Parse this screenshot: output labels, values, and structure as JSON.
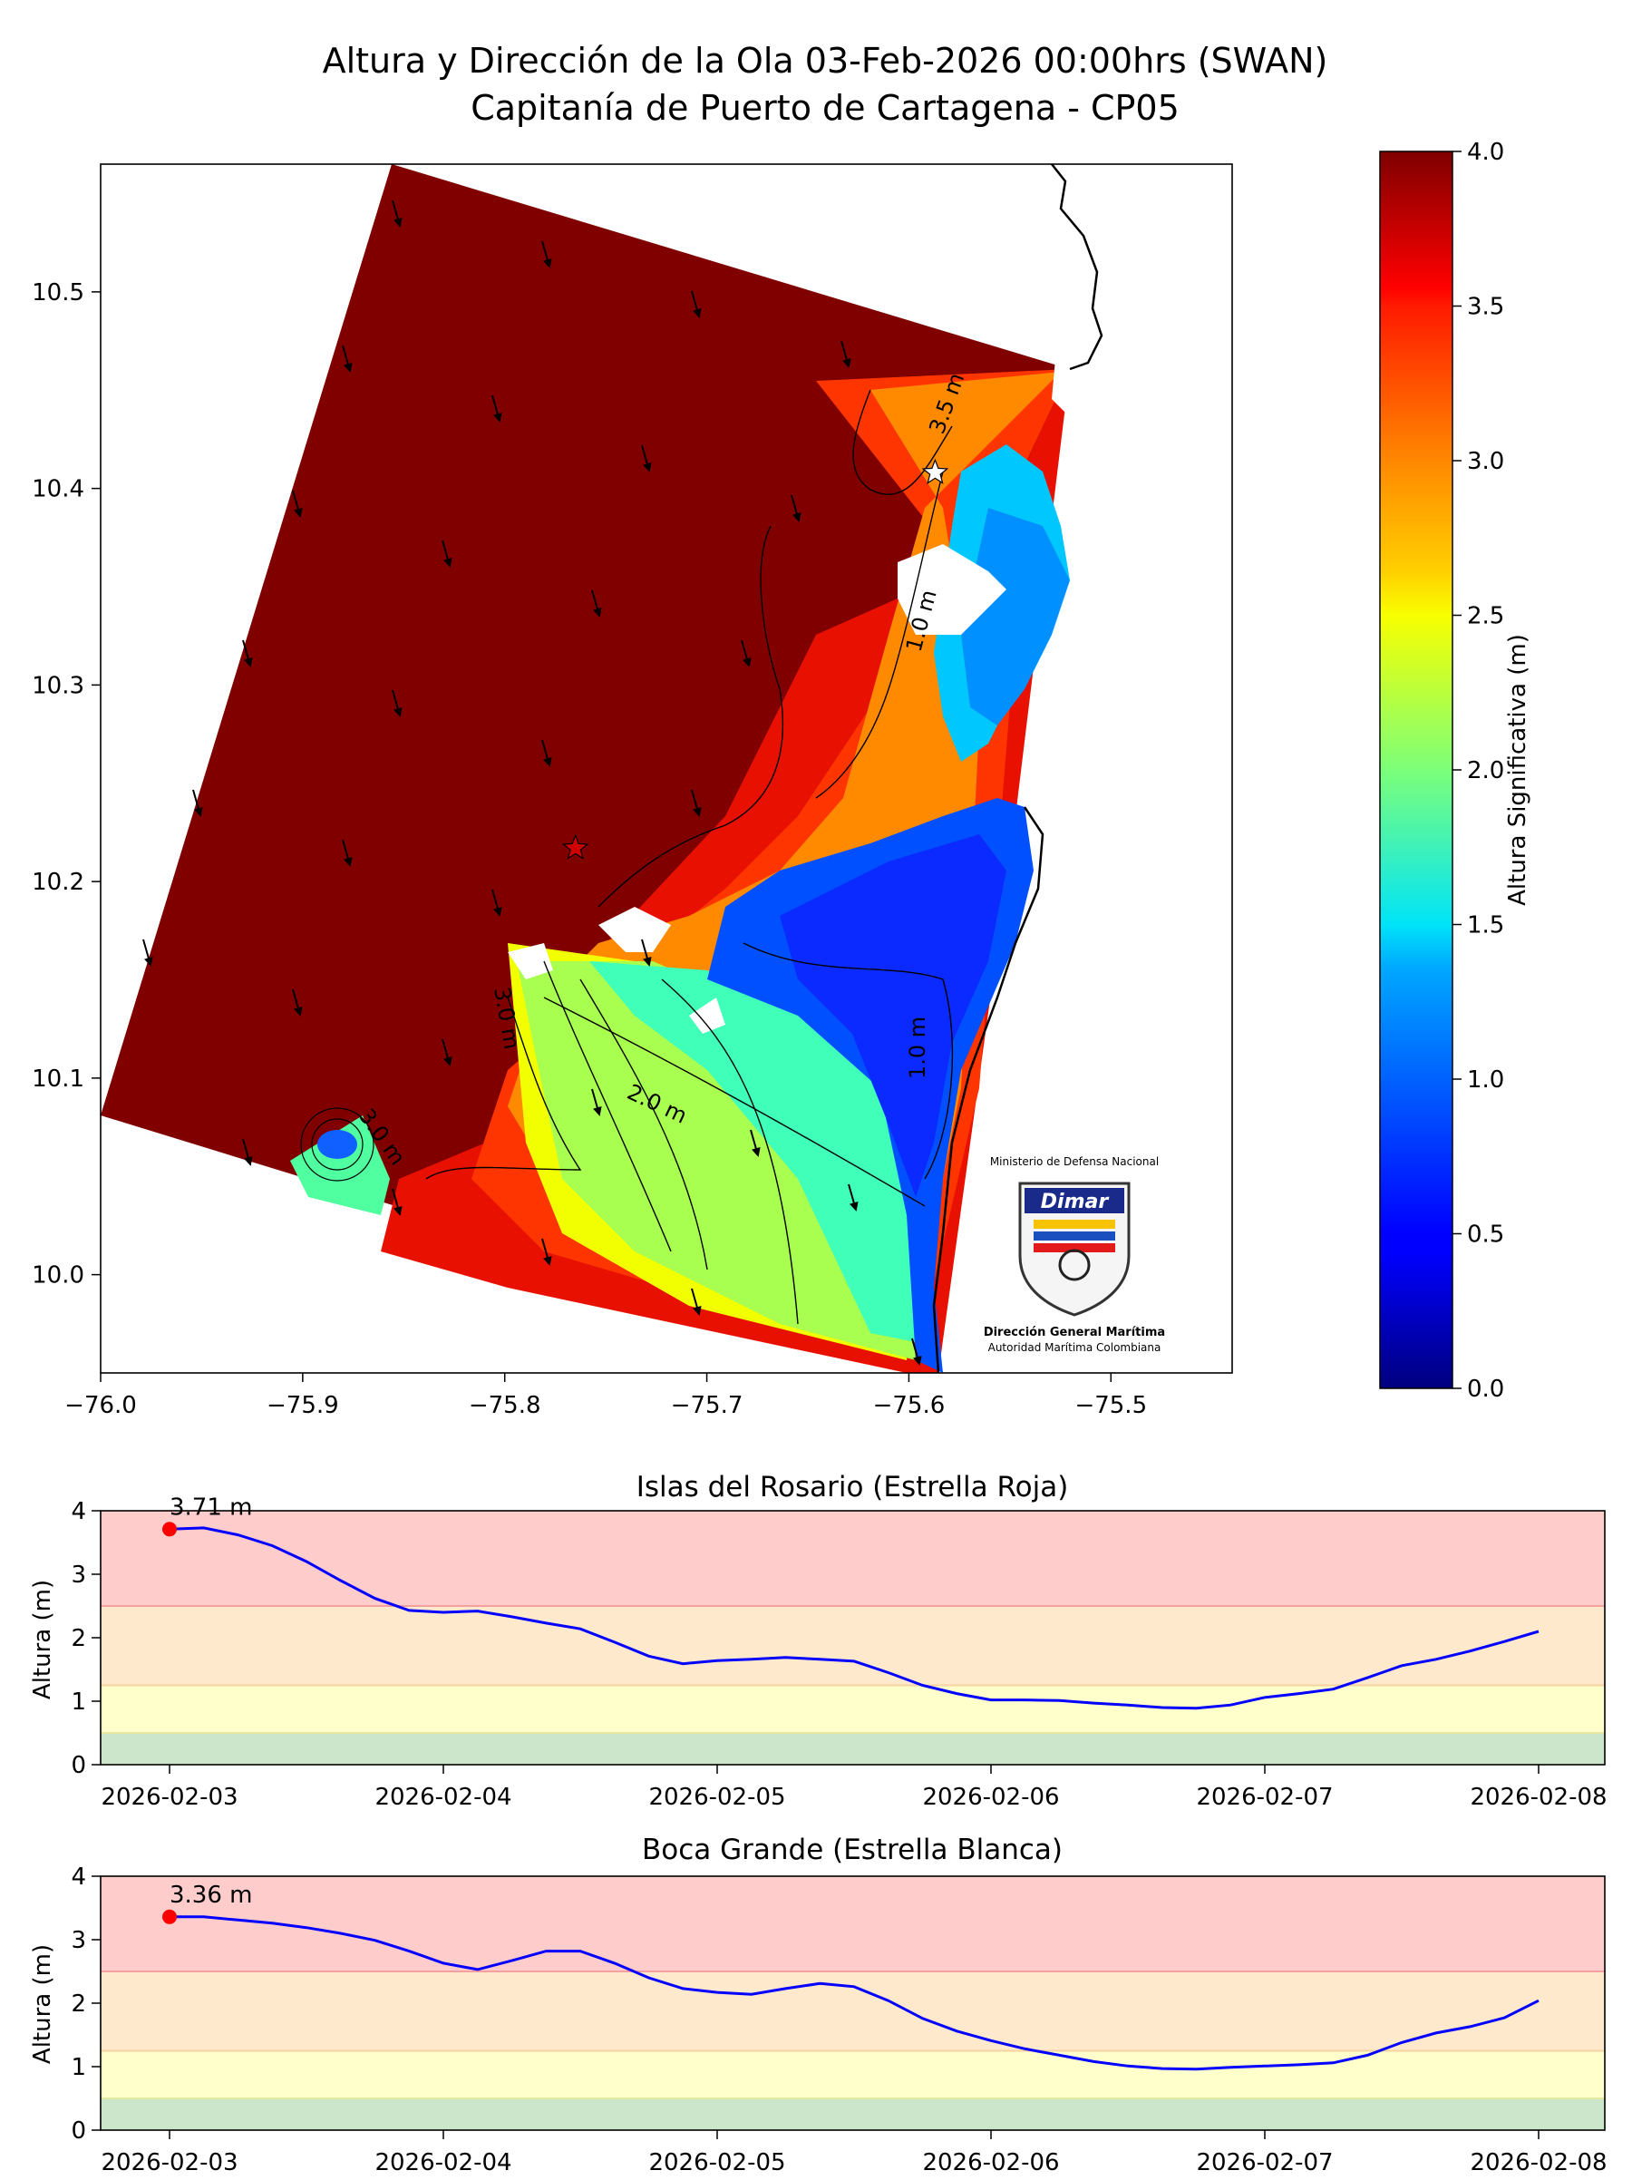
{
  "figure": {
    "title_line1": "Altura y Dirección de la Ola 03-Feb-2026 00:00hrs (SWAN)",
    "title_line2": "Capitanía de Puerto de Cartagena - CP05"
  },
  "logo": {
    "top_text": "Ministerio de Defensa Nacional",
    "brand": "Dimar",
    "name": "Dirección General Marítima",
    "subtitle": "Autoridad Marítima Colombiana"
  },
  "chart_data": [
    {
      "type": "heatmap",
      "title": "Altura y Dirección de la Ola 03-Feb-2026 00:00hrs (SWAN)",
      "subtitle": "Capitanía de Puerto de Cartagena - CP05",
      "xlim": [
        -76.0,
        -75.44
      ],
      "ylim": [
        9.95,
        10.565
      ],
      "x_ticks": [
        -76.0,
        -75.9,
        -75.8,
        -75.7,
        -75.6,
        -75.5
      ],
      "x_tick_labels": [
        "−76.0",
        "−75.9",
        "−75.8",
        "−75.7",
        "−75.6",
        "−75.5"
      ],
      "y_ticks": [
        10.0,
        10.1,
        10.2,
        10.3,
        10.4,
        10.5
      ],
      "y_tick_labels": [
        "10.0",
        "10.1",
        "10.2",
        "10.3",
        "10.4",
        "10.5"
      ],
      "colorbar": {
        "label": "Altura Significativa (m)",
        "range": [
          0.0,
          4.0
        ],
        "ticks": [
          0.0,
          0.5,
          1.0,
          1.5,
          2.0,
          2.5,
          3.0,
          3.5,
          4.0
        ],
        "tick_labels": [
          "0.0",
          "0.5",
          "1.0",
          "1.5",
          "2.0",
          "2.5",
          "3.0",
          "3.5",
          "4.0"
        ],
        "colormap": "jet"
      },
      "contour_labels": [
        "3.5 m",
        "2.0 m",
        "3.0 m",
        "3.0 m",
        "1.0 m",
        "1.0 m"
      ],
      "markers": [
        {
          "name": "Islas del Rosario (Estrella Roja)",
          "lon": -75.765,
          "lat": 10.217,
          "symbol": "star",
          "color": "#d00000"
        },
        {
          "name": "Boca Grande (Estrella Blanca)",
          "lon": -75.587,
          "lat": 10.408,
          "symbol": "star",
          "color": "#ffffff"
        }
      ],
      "wave_direction": "SSE (arrows pointing south, slightly east)",
      "wave_height_zones": [
        {
          "zone": "open sea west",
          "approx_m": 4.0
        },
        {
          "zone": "north coast near Boca Grande",
          "approx_m": 3.5
        },
        {
          "zone": "south of Islas del Rosario",
          "approx_m": 2.0
        },
        {
          "zone": "Bahía de Cartagena",
          "approx_m": 1.0
        },
        {
          "zone": "Bahía de Barbacoas",
          "approx_m": 0.7
        }
      ]
    },
    {
      "type": "line",
      "title": "Islas del Rosario (Estrella Roja)",
      "ylabel": "Altura (m)",
      "xlabel": "",
      "ylim": [
        0,
        4
      ],
      "y_ticks": [
        0,
        1,
        2,
        3,
        4
      ],
      "x_tick_labels": [
        "2026-02-03",
        "2026-02-04",
        "2026-02-05",
        "2026-02-06",
        "2026-02-07",
        "2026-02-08"
      ],
      "bands": [
        {
          "from": 0,
          "to": 0.5,
          "color": "#cce6cc"
        },
        {
          "from": 0.5,
          "to": 1.25,
          "color": "#ffffcc"
        },
        {
          "from": 1.25,
          "to": 2.5,
          "color": "#ffe9cc"
        },
        {
          "from": 2.5,
          "to": 4,
          "color": "#ffcccc"
        }
      ],
      "current_label": "3.71 m",
      "current_point": {
        "x": "2026-02-03 00:00",
        "y": 3.71
      },
      "x": [
        "2026-02-03 00:00",
        "2026-02-03 03:00",
        "2026-02-03 06:00",
        "2026-02-03 09:00",
        "2026-02-03 12:00",
        "2026-02-03 15:00",
        "2026-02-03 18:00",
        "2026-02-03 21:00",
        "2026-02-04 00:00",
        "2026-02-04 03:00",
        "2026-02-04 06:00",
        "2026-02-04 09:00",
        "2026-02-04 12:00",
        "2026-02-04 15:00",
        "2026-02-04 18:00",
        "2026-02-04 21:00",
        "2026-02-05 00:00",
        "2026-02-05 03:00",
        "2026-02-05 06:00",
        "2026-02-05 09:00",
        "2026-02-05 12:00",
        "2026-02-05 15:00",
        "2026-02-05 18:00",
        "2026-02-05 21:00",
        "2026-02-06 00:00",
        "2026-02-06 03:00",
        "2026-02-06 06:00",
        "2026-02-06 09:00",
        "2026-02-06 12:00",
        "2026-02-06 15:00",
        "2026-02-06 18:00",
        "2026-02-06 21:00",
        "2026-02-07 00:00",
        "2026-02-07 03:00",
        "2026-02-07 06:00",
        "2026-02-07 09:00",
        "2026-02-07 12:00",
        "2026-02-07 15:00",
        "2026-02-07 18:00",
        "2026-02-07 21:00",
        "2026-02-08 00:00"
      ],
      "series": [
        {
          "values": [
            3.71,
            3.73,
            3.62,
            3.45,
            3.2,
            2.9,
            2.62,
            2.43,
            2.4,
            2.42,
            2.33,
            2.23,
            2.14,
            1.93,
            1.71,
            1.59,
            1.64,
            1.66,
            1.69,
            1.66,
            1.63,
            1.45,
            1.25,
            1.12,
            1.02,
            1.02,
            1.01,
            0.97,
            0.94,
            0.9,
            0.89,
            0.94,
            1.06,
            1.12,
            1.19,
            1.37,
            1.56,
            1.66,
            1.79,
            1.94,
            2.1
          ],
          "color": "#0000ff"
        }
      ]
    },
    {
      "type": "line",
      "title": "Boca Grande (Estrella Blanca)",
      "ylabel": "Altura (m)",
      "xlabel": "",
      "ylim": [
        0,
        4
      ],
      "y_ticks": [
        0,
        1,
        2,
        3,
        4
      ],
      "x_tick_labels": [
        "2026-02-03",
        "2026-02-04",
        "2026-02-05",
        "2026-02-06",
        "2026-02-07",
        "2026-02-08"
      ],
      "bands": [
        {
          "from": 0,
          "to": 0.5,
          "color": "#cce6cc"
        },
        {
          "from": 0.5,
          "to": 1.25,
          "color": "#ffffcc"
        },
        {
          "from": 1.25,
          "to": 2.5,
          "color": "#ffe9cc"
        },
        {
          "from": 2.5,
          "to": 4,
          "color": "#ffcccc"
        }
      ],
      "current_label": "3.36 m",
      "current_point": {
        "x": "2026-02-03 00:00",
        "y": 3.36
      },
      "x": [
        "2026-02-03 00:00",
        "2026-02-03 03:00",
        "2026-02-03 06:00",
        "2026-02-03 09:00",
        "2026-02-03 12:00",
        "2026-02-03 15:00",
        "2026-02-03 18:00",
        "2026-02-03 21:00",
        "2026-02-04 00:00",
        "2026-02-04 03:00",
        "2026-02-04 06:00",
        "2026-02-04 09:00",
        "2026-02-04 12:00",
        "2026-02-04 15:00",
        "2026-02-04 18:00",
        "2026-02-04 21:00",
        "2026-02-05 00:00",
        "2026-02-05 03:00",
        "2026-02-05 06:00",
        "2026-02-05 09:00",
        "2026-02-05 12:00",
        "2026-02-05 15:00",
        "2026-02-05 18:00",
        "2026-02-05 21:00",
        "2026-02-06 00:00",
        "2026-02-06 03:00",
        "2026-02-06 06:00",
        "2026-02-06 09:00",
        "2026-02-06 12:00",
        "2026-02-06 15:00",
        "2026-02-06 18:00",
        "2026-02-06 21:00",
        "2026-02-07 00:00",
        "2026-02-07 03:00",
        "2026-02-07 06:00",
        "2026-02-07 09:00",
        "2026-02-07 12:00",
        "2026-02-07 15:00",
        "2026-02-07 18:00",
        "2026-02-07 21:00",
        "2026-02-08 00:00"
      ],
      "series": [
        {
          "values": [
            3.36,
            3.36,
            3.31,
            3.26,
            3.19,
            3.1,
            2.99,
            2.82,
            2.63,
            2.53,
            2.67,
            2.82,
            2.82,
            2.63,
            2.4,
            2.23,
            2.17,
            2.14,
            2.23,
            2.31,
            2.26,
            2.04,
            1.76,
            1.56,
            1.41,
            1.28,
            1.18,
            1.08,
            1.01,
            0.97,
            0.96,
            0.99,
            1.01,
            1.03,
            1.06,
            1.18,
            1.38,
            1.53,
            1.63,
            1.77,
            2.04
          ],
          "color": "#0000ff"
        }
      ]
    }
  ]
}
